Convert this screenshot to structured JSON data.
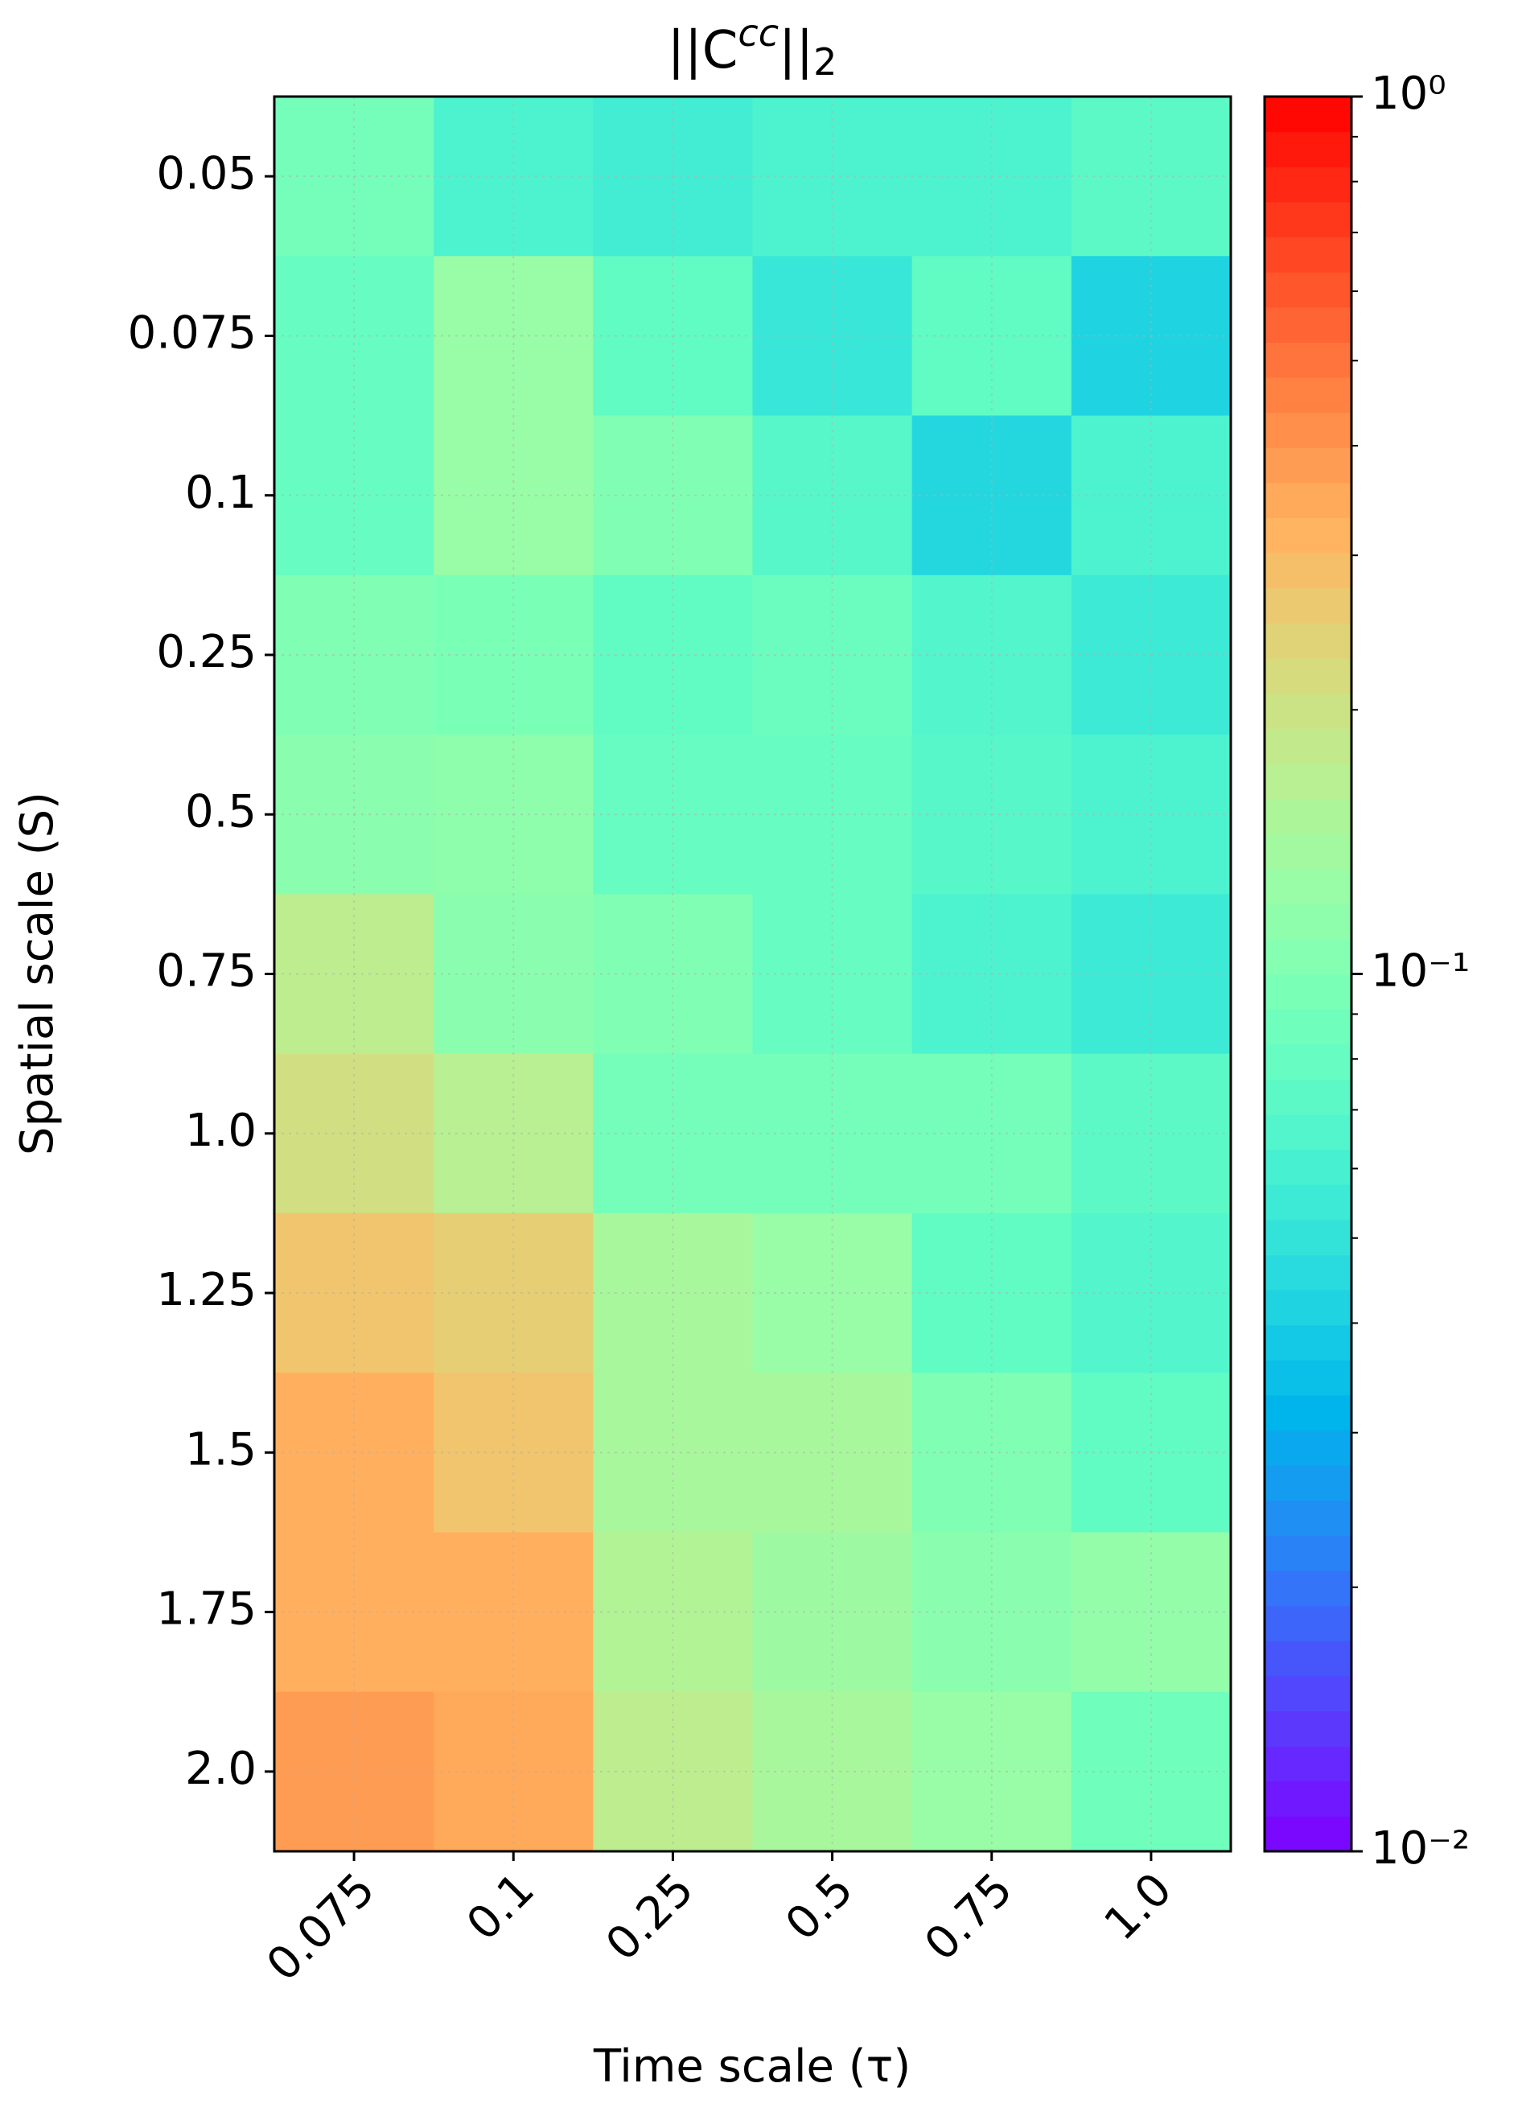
{
  "chart_data": {
    "type": "heatmap",
    "title": {
      "base": "||C",
      "sup": "cc",
      "after": "||",
      "sub": "2"
    },
    "xlabel": "Time scale (τ)",
    "ylabel": "Spatial scale (S)",
    "x_categories": [
      "0.075",
      "0.1",
      "0.25",
      "0.5",
      "0.75",
      "1.0"
    ],
    "y_categories": [
      "0.05",
      "0.075",
      "0.1",
      "0.25",
      "0.5",
      "0.75",
      "1.0",
      "1.25",
      "1.5",
      "1.75",
      "2.0"
    ],
    "values": [
      [
        0.0912,
        0.0631,
        0.0575,
        0.0631,
        0.0631,
        0.0724
      ],
      [
        0.0794,
        0.126,
        0.0759,
        0.0525,
        0.0759,
        0.0417
      ],
      [
        0.0794,
        0.126,
        0.1,
        0.0692,
        0.0437,
        0.0631
      ],
      [
        0.1,
        0.0955,
        0.0759,
        0.0832,
        0.0661,
        0.055
      ],
      [
        0.11,
        0.115,
        0.0794,
        0.0794,
        0.0692,
        0.0631
      ],
      [
        0.174,
        0.11,
        0.1,
        0.0794,
        0.0631,
        0.055
      ],
      [
        0.209,
        0.166,
        0.0912,
        0.0912,
        0.0912,
        0.0724
      ],
      [
        0.275,
        0.251,
        0.145,
        0.126,
        0.0759,
        0.0661
      ],
      [
        0.331,
        0.275,
        0.145,
        0.145,
        0.1,
        0.0759
      ],
      [
        0.331,
        0.331,
        0.158,
        0.132,
        0.11,
        0.12
      ],
      [
        0.38,
        0.347,
        0.174,
        0.145,
        0.126,
        0.0871
      ]
    ],
    "colormap": "rainbow",
    "clim": [
      0.01,
      1
    ],
    "log_color_scale": true,
    "cticks": [
      {
        "value": 1,
        "label": "10⁰"
      },
      {
        "value": 0.1,
        "label": "10⁻¹"
      },
      {
        "value": 0.01,
        "label": "10⁻²"
      }
    ],
    "cminor_ticks": [
      0.02,
      0.03,
      0.04,
      0.05,
      0.06,
      0.07,
      0.08,
      0.09,
      0.2,
      0.3,
      0.4,
      0.5,
      0.6,
      0.7,
      0.8,
      0.9
    ],
    "grid": true
  }
}
